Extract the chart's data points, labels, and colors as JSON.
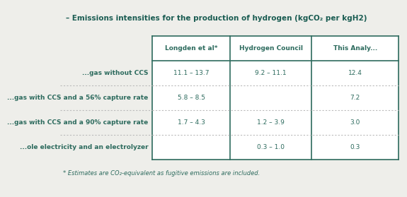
{
  "title": "– Emissions intensities for the production of hydrogen (kgCO₂ per kgH2)",
  "title_color": "#1a5c52",
  "bg_color": "#eeeeea",
  "text_color": "#2d6b5e",
  "footnote": "* Estimates are CO₂-equivalent as fugitive emissions are included.",
  "col_headers": [
    "Longden et al*",
    "Hydrogen Council",
    "This Analy..."
  ],
  "row_labels": [
    "...gas without CCS",
    "...gas with CCS and a 56% capture rate",
    "...gas with CCS and a 90% capture rate",
    "...ole electricity and an electrolyzer"
  ],
  "data": [
    [
      "11.1 – 13.7",
      "9.2 – 11.1",
      "12.4"
    ],
    [
      "5.8 – 8.5",
      "",
      "7.2"
    ],
    [
      "1.7 – 4.3",
      "1.2 – 3.9",
      "3.0"
    ],
    [
      "",
      "0.3 – 1.0",
      "0.3"
    ]
  ],
  "title_fontsize": 7.5,
  "header_fontsize": 6.5,
  "cell_fontsize": 6.5,
  "row_label_fontsize": 6.5,
  "footnote_fontsize": 6.0,
  "border_color": "#2d6b5e",
  "dot_color": "#bbbbbb",
  "header_bg": "#ffffff",
  "cell_bg": "#ffffff"
}
